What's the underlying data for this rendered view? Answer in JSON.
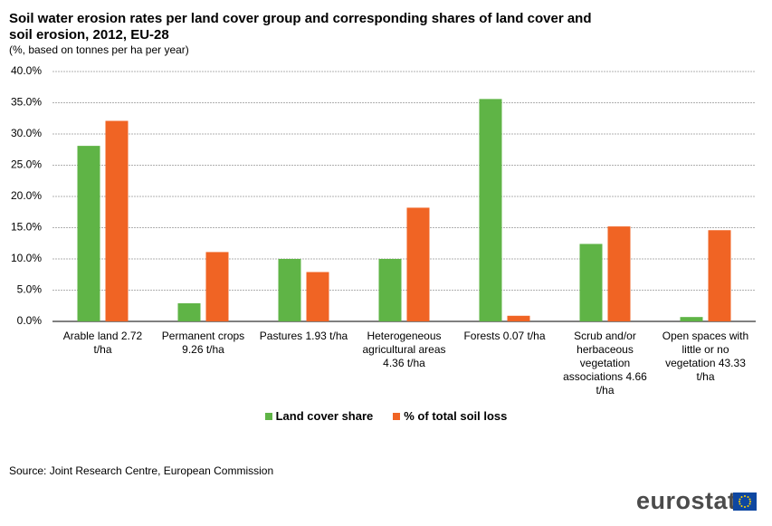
{
  "chart_data": {
    "type": "bar",
    "title": "Soil water erosion rates per land cover group and corresponding shares of land cover and soil erosion, 2012, EU-28",
    "subtitle": "(%, based on tonnes per ha per year)",
    "categories": [
      "Arable land 2.72 t/ha",
      "Permanent crops 9.26 t/ha",
      "Pastures 1.93 t/ha",
      "Heterogeneous agricultural areas 4.36 t/ha",
      "Forests 0.07 t/ha",
      "Scrub and/or herbaceous vegetation associations 4.66 t/ha",
      "Open spaces with little or no vegetation 43.33 t/ha"
    ],
    "series": [
      {
        "name": "Land cover share",
        "color": "#5fb446",
        "values": [
          28.1,
          2.9,
          10.0,
          10.0,
          35.6,
          12.4,
          0.7
        ]
      },
      {
        "name": "% of total soil loss",
        "color": "#f06424",
        "values": [
          32.1,
          11.1,
          7.9,
          18.2,
          0.9,
          15.2,
          14.6
        ]
      }
    ],
    "ylim": [
      0,
      40
    ],
    "yticks": [
      {
        "value": 0,
        "label": "0.0%"
      },
      {
        "value": 5,
        "label": "5.0%"
      },
      {
        "value": 10,
        "label": "10.0%"
      },
      {
        "value": 15,
        "label": "15.0%"
      },
      {
        "value": 20,
        "label": "20.0%"
      },
      {
        "value": 25,
        "label": "25.0%"
      },
      {
        "value": 30,
        "label": "30.0%"
      },
      {
        "value": 35,
        "label": "35.0%"
      },
      {
        "value": 40,
        "label": "40.0%"
      }
    ],
    "grid": true,
    "legend": "bottom",
    "source": "Source: Joint Research Centre, European Commission",
    "logo": "eurostat"
  }
}
